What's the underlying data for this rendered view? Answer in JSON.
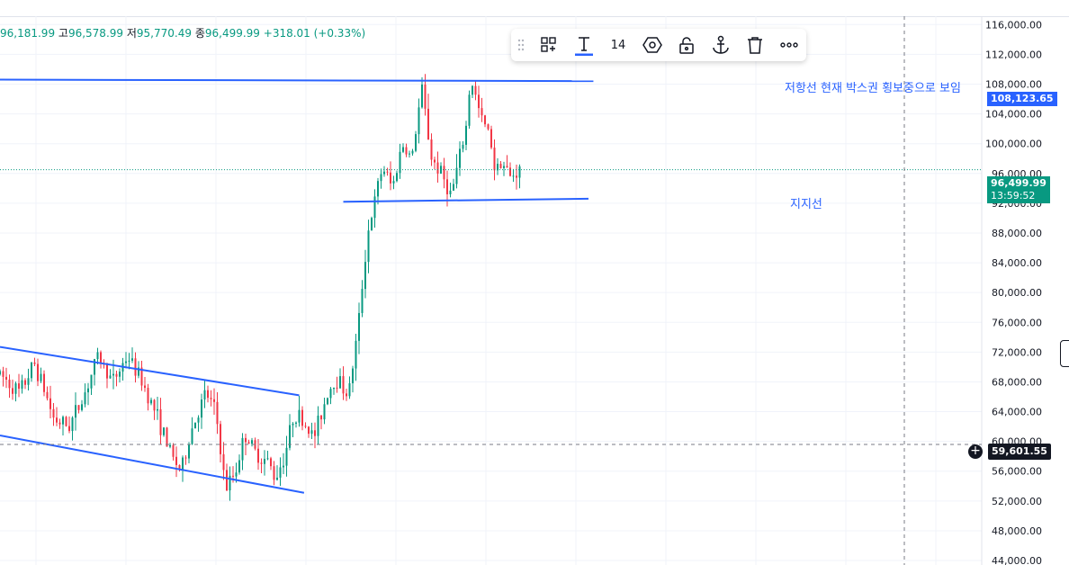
{
  "ohlc": {
    "open_value": "96,181.99",
    "high_key": "고",
    "high_value": "96,578.99",
    "low_key": "저",
    "low_value": "95,770.49",
    "close_key": "종",
    "close_value": "96,499.99",
    "change": "+318.01 (+0.33%)"
  },
  "toolbar": {
    "font_size": "14",
    "icons": [
      "template-icon",
      "text-icon",
      "settings-hex-icon",
      "lock-icon",
      "anchor-icon",
      "trash-icon",
      "more-icon"
    ]
  },
  "annotations": {
    "resistance_text": "저항선 현재 박스권 횡보중으로 보임",
    "support_text": "지지선"
  },
  "badges": {
    "resistance_price": "108,123.65",
    "current_price": "96,499.99",
    "countdown": "13:59:52",
    "crosshair_price": "59,601.55"
  },
  "colors": {
    "up": "#089981",
    "down": "#f23645",
    "line": "#2962ff",
    "current": "#089981",
    "crosshair": "#131722"
  },
  "chart_data": {
    "type": "candlestick",
    "y_tick_labels": [
      "116,000.00",
      "112,000.00",
      "108,000.00",
      "104,000.00",
      "100,000.00",
      "96,000.00",
      "92,000.00",
      "88,000.00",
      "84,000.00",
      "80,000.00",
      "76,000.00",
      "72,000.00",
      "68,000.00",
      "64,000.00",
      "60,000.00",
      "56,000.00",
      "52,000.00",
      "48,000.00",
      "44,000.00"
    ],
    "y_ticks": [
      116000,
      112000,
      108000,
      104000,
      100000,
      96000,
      92000,
      88000,
      84000,
      80000,
      76000,
      72000,
      68000,
      64000,
      60000,
      56000,
      52000,
      48000,
      44000
    ],
    "ylim": [
      43400,
      119300
    ],
    "current_price": 96499.99,
    "crosshair_price": 59601.55,
    "trend_lines": [
      {
        "name": "저항선",
        "x": [
          0.0,
          0.605
        ],
        "y": [
          108600,
          108400
        ]
      },
      {
        "name": "지지선",
        "x": [
          0.35,
          0.6
        ],
        "y": [
          92200,
          92600
        ]
      },
      {
        "name": "",
        "x": [
          0.0,
          0.305
        ],
        "y": [
          72700,
          66200
        ]
      },
      {
        "name": "",
        "x": [
          0.0,
          0.31
        ],
        "y": [
          60800,
          53100
        ]
      }
    ],
    "path": [
      [
        0.0,
        69000
      ],
      [
        0.02,
        66500
      ],
      [
        0.035,
        70500
      ],
      [
        0.045,
        67000
      ],
      [
        0.055,
        63000
      ],
      [
        0.07,
        62000
      ],
      [
        0.085,
        66000
      ],
      [
        0.1,
        71500
      ],
      [
        0.115,
        68000
      ],
      [
        0.13,
        71500
      ],
      [
        0.145,
        68000
      ],
      [
        0.16,
        63500
      ],
      [
        0.175,
        58000
      ],
      [
        0.185,
        56000
      ],
      [
        0.195,
        61500
      ],
      [
        0.21,
        66500
      ],
      [
        0.22,
        64000
      ],
      [
        0.23,
        53500
      ],
      [
        0.24,
        56000
      ],
      [
        0.25,
        61000
      ],
      [
        0.26,
        58500
      ],
      [
        0.275,
        57000
      ],
      [
        0.28,
        55000
      ],
      [
        0.29,
        58000
      ],
      [
        0.3,
        64000
      ],
      [
        0.31,
        62500
      ],
      [
        0.32,
        60500
      ],
      [
        0.335,
        67000
      ],
      [
        0.345,
        68500
      ],
      [
        0.355,
        66000
      ],
      [
        0.365,
        75000
      ],
      [
        0.37,
        82000
      ],
      [
        0.375,
        88000
      ],
      [
        0.39,
        97000
      ],
      [
        0.4,
        94000
      ],
      [
        0.41,
        100000
      ],
      [
        0.42,
        98000
      ],
      [
        0.43,
        107500
      ],
      [
        0.44,
        98000
      ],
      [
        0.45,
        96000
      ],
      [
        0.46,
        93000
      ],
      [
        0.475,
        102000
      ],
      [
        0.48,
        109000
      ],
      [
        0.49,
        103500
      ],
      [
        0.5,
        101000
      ],
      [
        0.505,
        96000
      ],
      [
        0.51,
        98000
      ],
      [
        0.52,
        95500
      ],
      [
        0.53,
        96500
      ]
    ]
  }
}
